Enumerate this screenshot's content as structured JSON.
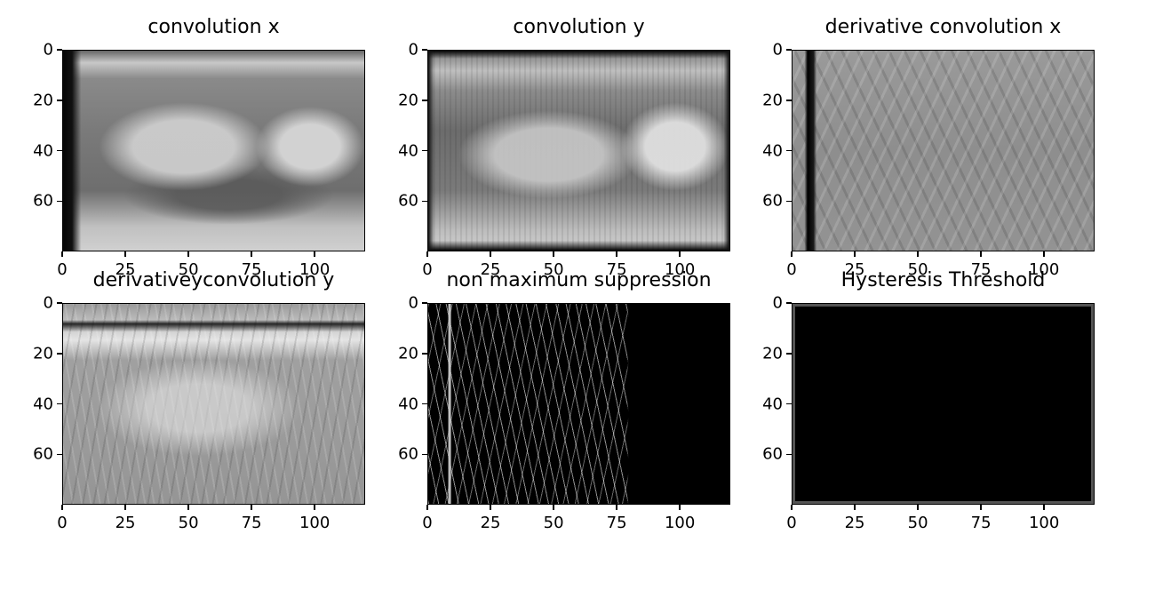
{
  "figure": {
    "colormap": "gray"
  },
  "chart_data": [
    {
      "type": "heatmap",
      "title": "convolution x",
      "xlim": [
        0,
        120
      ],
      "ylim": [
        80,
        0
      ],
      "x_ticks": [
        "0",
        "25",
        "50",
        "75",
        "100"
      ],
      "y_ticks": [
        "0",
        "20",
        "40",
        "60"
      ]
    },
    {
      "type": "heatmap",
      "title": "convolution y",
      "xlim": [
        0,
        120
      ],
      "ylim": [
        80,
        0
      ],
      "x_ticks": [
        "0",
        "25",
        "50",
        "75",
        "100"
      ],
      "y_ticks": [
        "0",
        "20",
        "40",
        "60"
      ]
    },
    {
      "type": "heatmap",
      "title": "derivative convolution x",
      "xlim": [
        0,
        120
      ],
      "ylim": [
        80,
        0
      ],
      "x_ticks": [
        "0",
        "25",
        "50",
        "75",
        "100"
      ],
      "y_ticks": [
        "0",
        "20",
        "40",
        "60"
      ]
    },
    {
      "type": "heatmap",
      "title": "derivativeyconvolution y",
      "xlim": [
        0,
        120
      ],
      "ylim": [
        80,
        0
      ],
      "x_ticks": [
        "0",
        "25",
        "50",
        "75",
        "100"
      ],
      "y_ticks": [
        "0",
        "20",
        "40",
        "60"
      ]
    },
    {
      "type": "heatmap",
      "title": "non maximum suppression",
      "xlim": [
        0,
        120
      ],
      "ylim": [
        80,
        0
      ],
      "x_ticks": [
        "0",
        "25",
        "50",
        "75",
        "100"
      ],
      "y_ticks": [
        "0",
        "20",
        "40",
        "60"
      ]
    },
    {
      "type": "heatmap",
      "title": "Hysteresis Threshold",
      "xlim": [
        0,
        120
      ],
      "ylim": [
        80,
        0
      ],
      "x_ticks": [
        "0",
        "25",
        "50",
        "75",
        "100"
      ],
      "y_ticks": [
        "0",
        "20",
        "40",
        "60"
      ]
    }
  ]
}
